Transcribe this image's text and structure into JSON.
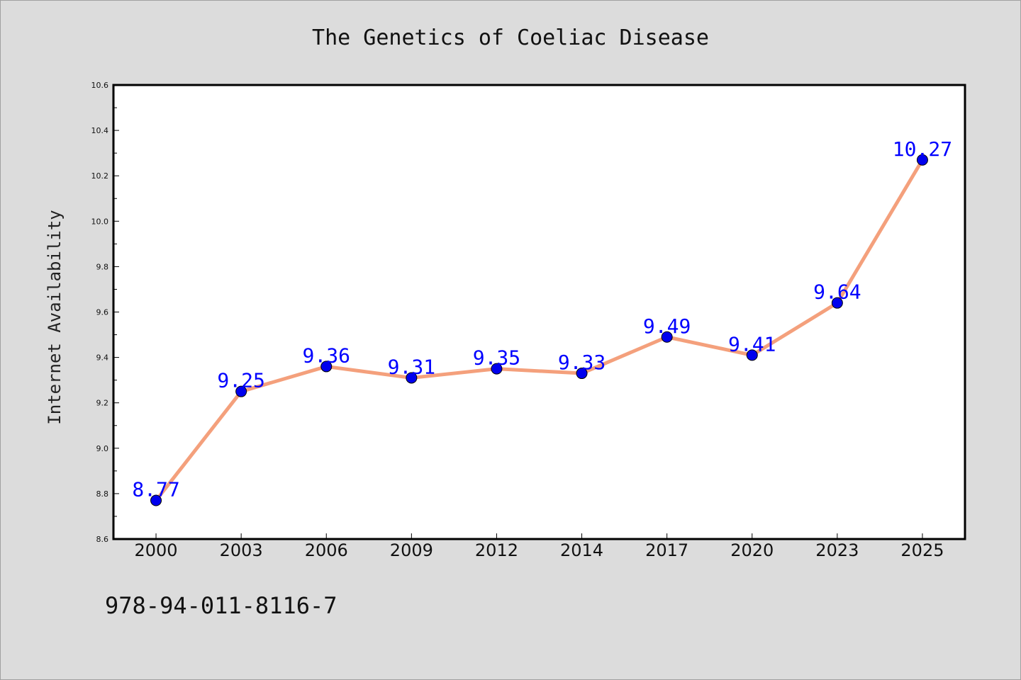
{
  "chart_data": {
    "type": "line",
    "title": "The Genetics of Coeliac Disease",
    "xlabel": "",
    "ylabel": "Internet Availability",
    "categories": [
      "2000",
      "2003",
      "2006",
      "2009",
      "2012",
      "2014",
      "2017",
      "2020",
      "2023",
      "2025"
    ],
    "series": [
      {
        "values": [
          8.77,
          9.25,
          9.36,
          9.31,
          9.35,
          9.33,
          9.49,
          9.41,
          9.64,
          10.27
        ],
        "data_labels": [
          "8.77",
          "9.25",
          "9.36",
          "9.31",
          "9.35",
          "9.33",
          "9.49",
          "9.41",
          "9.64",
          "10.27"
        ]
      }
    ],
    "ylim": [
      8.6,
      10.6
    ],
    "yticks": [
      "8.6",
      "8.8",
      "9.0",
      "9.2",
      "9.4",
      "9.6",
      "9.8",
      "10.0",
      "10.2",
      "10.4",
      "10.6"
    ],
    "grid": false,
    "colors": {
      "line": "#f4a07c",
      "marker": "#0000ee",
      "marker_edge": "#000000",
      "label": "#0000ff"
    }
  },
  "footer": {
    "isbn": "978-94-011-8116-7"
  }
}
